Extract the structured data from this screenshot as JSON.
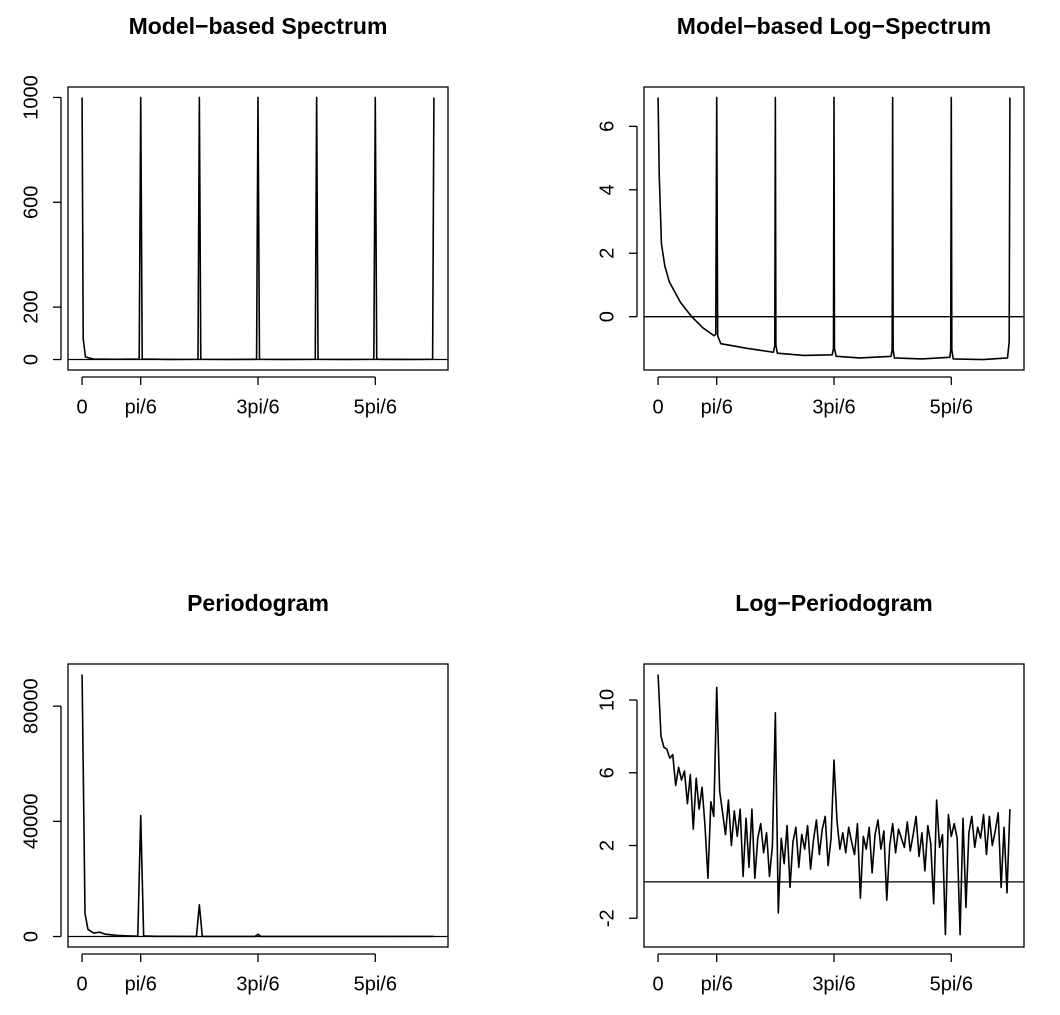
{
  "chart_data": [
    {
      "type": "line",
      "title": "Model−based Spectrum",
      "color": "#000000",
      "hline": 0,
      "x": [
        0,
        0.01,
        0.03,
        0.1,
        0.3,
        0.51,
        0.5236,
        0.537,
        0.8,
        1.035,
        1.0472,
        1.06,
        1.3,
        1.558,
        1.5708,
        1.584,
        1.8,
        2.082,
        2.0944,
        2.107,
        2.35,
        2.605,
        2.618,
        2.631,
        2.9,
        3.13,
        3.1416
      ],
      "values": [
        1000,
        80,
        10,
        2,
        1,
        2,
        1000,
        2,
        0.5,
        1,
        1000,
        1,
        0.4,
        1,
        1000,
        1,
        0.3,
        1,
        1000,
        1,
        0.3,
        1,
        1000,
        1,
        0.3,
        1,
        1000
      ],
      "xlim": [
        -0.1257,
        3.2673
      ],
      "ylim": [
        -40,
        1040
      ],
      "xticks": [
        0,
        {
          "value": 0.5236,
          "label": "pi/6"
        },
        {
          "value": 1.5708,
          "label": "3pi/6"
        },
        {
          "value": 2.618,
          "label": "5pi/6"
        }
      ],
      "yticks": [
        0,
        200,
        600,
        1000
      ]
    },
    {
      "type": "line",
      "title": "Model−based Log−Spectrum",
      "color": "#000000",
      "hline": 0,
      "x": [
        0,
        0.01,
        0.03,
        0.06,
        0.1,
        0.2,
        0.3,
        0.4,
        0.5,
        0.515,
        0.5236,
        0.532,
        0.56,
        0.8,
        1.03,
        1.042,
        1.0472,
        1.052,
        1.065,
        1.3,
        1.555,
        1.566,
        1.5708,
        1.575,
        1.59,
        1.8,
        2.08,
        2.09,
        2.0944,
        2.099,
        2.11,
        2.35,
        2.605,
        2.613,
        2.618,
        2.623,
        2.635,
        2.9,
        3.12,
        3.135,
        3.1416
      ],
      "values": [
        6.91,
        4.5,
        2.3,
        1.6,
        1.1,
        0.45,
        0,
        -0.35,
        -0.6,
        -0.55,
        6.91,
        -0.6,
        -0.85,
        -1.0,
        -1.12,
        -0.9,
        6.91,
        -0.9,
        -1.15,
        -1.22,
        -1.2,
        -1.0,
        6.91,
        -1.0,
        -1.25,
        -1.3,
        -1.25,
        -1.05,
        6.91,
        -1.05,
        -1.3,
        -1.33,
        -1.28,
        -1.05,
        6.91,
        -1.05,
        -1.33,
        -1.35,
        -1.3,
        -0.8,
        6.91
      ],
      "xlim": [
        -0.1257,
        3.2673
      ],
      "ylim": [
        -1.68,
        7.24
      ],
      "xticks": [
        0,
        {
          "value": 0.5236,
          "label": "pi/6"
        },
        {
          "value": 1.5708,
          "label": "3pi/6"
        },
        {
          "value": 2.618,
          "label": "5pi/6"
        }
      ],
      "yticks": [
        0,
        2,
        4,
        6
      ]
    },
    {
      "type": "line",
      "title": "Periodogram",
      "color": "#000000",
      "hline": 0,
      "x": [
        0,
        0.0262,
        0.0524,
        0.0785,
        0.1047,
        0.1571,
        0.2094,
        0.2618,
        0.3142,
        0.4189,
        0.4974,
        0.5236,
        0.5498,
        0.6545,
        0.8378,
        1.021,
        1.0472,
        1.0734,
        1.309,
        1.5446,
        1.5708,
        1.597,
        2.0944,
        2.618,
        3.1416
      ],
      "values": [
        91000,
        8000,
        2500,
        1800,
        1200,
        1500,
        800,
        600,
        400,
        200,
        100,
        42000,
        200,
        80,
        60,
        30,
        11000,
        40,
        30,
        20,
        800,
        20,
        15,
        20,
        50
      ],
      "xlim": [
        -0.1257,
        3.2673
      ],
      "ylim": [
        -3640,
        94640
      ],
      "xticks": [
        0,
        {
          "value": 0.5236,
          "label": "pi/6"
        },
        {
          "value": 1.5708,
          "label": "3pi/6"
        },
        {
          "value": 2.618,
          "label": "5pi/6"
        }
      ],
      "yticks": [
        0,
        40000,
        80000
      ]
    },
    {
      "type": "line",
      "title": "Log−Periodogram",
      "color": "#000000",
      "hline": 0,
      "x": [
        0,
        0.0262,
        0.0524,
        0.0785,
        0.1047,
        0.1309,
        0.1571,
        0.1833,
        0.2094,
        0.2356,
        0.2618,
        0.288,
        0.3142,
        0.3403,
        0.3665,
        0.3927,
        0.4189,
        0.4451,
        0.4712,
        0.4974,
        0.5236,
        0.5498,
        0.576,
        0.6021,
        0.6283,
        0.6545,
        0.6807,
        0.7069,
        0.733,
        0.7592,
        0.7854,
        0.8116,
        0.8378,
        0.8639,
        0.8901,
        0.9163,
        0.9425,
        0.9687,
        0.9948,
        1.021,
        1.0472,
        1.0734,
        1.0996,
        1.1257,
        1.1519,
        1.1781,
        1.2043,
        1.2305,
        1.2566,
        1.2828,
        1.309,
        1.3352,
        1.3614,
        1.3875,
        1.4137,
        1.4399,
        1.4661,
        1.4923,
        1.5184,
        1.5446,
        1.5708,
        1.597,
        1.6232,
        1.6493,
        1.6755,
        1.7017,
        1.7279,
        1.7541,
        1.7802,
        1.8064,
        1.8326,
        1.8588,
        1.885,
        1.9111,
        1.9373,
        1.9635,
        1.9897,
        2.0159,
        2.042,
        2.0682,
        2.0944,
        2.1206,
        2.1468,
        2.1729,
        2.1991,
        2.2253,
        2.2515,
        2.2777,
        2.3038,
        2.33,
        2.3562,
        2.3824,
        2.4086,
        2.4347,
        2.4609,
        2.4871,
        2.5133,
        2.5395,
        2.5656,
        2.5918,
        2.618,
        2.6442,
        2.6704,
        2.6965,
        2.7227,
        2.7489,
        2.7751,
        2.8013,
        2.8274,
        2.8536,
        2.8798,
        2.906,
        2.9322,
        2.9583,
        2.9845,
        3.0107,
        3.0369,
        3.0631,
        3.0892,
        3.1154,
        3.1416
      ],
      "values": [
        11.4,
        8.0,
        7.4,
        7.3,
        6.8,
        7.0,
        5.3,
        6.3,
        5.6,
        6.1,
        4.3,
        5.9,
        2.9,
        5.7,
        4.0,
        5.2,
        3.1,
        0.2,
        4.4,
        3.6,
        10.7,
        5.0,
        3.8,
        2.6,
        4.5,
        2.0,
        3.9,
        2.5,
        4.0,
        0.3,
        3.5,
        0.8,
        4.0,
        0.2,
        2.4,
        3.2,
        1.6,
        2.7,
        0.3,
        2.0,
        9.3,
        -1.7,
        2.4,
        1.0,
        3.1,
        -0.3,
        2.2,
        3.0,
        0.8,
        2.6,
        1.8,
        3.1,
        0.7,
        2.3,
        3.4,
        1.5,
        2.9,
        3.6,
        0.9,
        2.4,
        6.7,
        3.4,
        1.8,
        2.7,
        1.6,
        3.0,
        2.2,
        1.5,
        3.2,
        -0.9,
        2.5,
        1.8,
        3.0,
        0.5,
        2.6,
        3.4,
        1.8,
        2.8,
        -1.0,
        2.0,
        3.2,
        1.6,
        2.9,
        2.4,
        1.9,
        3.3,
        1.7,
        2.6,
        3.6,
        1.4,
        2.7,
        0.6,
        3.1,
        2.1,
        -1.2,
        4.5,
        1.9,
        2.6,
        -2.9,
        3.7,
        2.5,
        3.2,
        2.4,
        -2.9,
        3.5,
        -1.4,
        2.7,
        3.6,
        1.9,
        3.0,
        2.4,
        3.7,
        1.5,
        3.6,
        2.0,
        2.8,
        3.8,
        -0.3,
        3.0,
        -0.6,
        4.0
      ],
      "xlim": [
        -0.1257,
        3.2673
      ],
      "ylim": [
        -3.58,
        11.98
      ],
      "xticks": [
        0,
        {
          "value": 0.5236,
          "label": "pi/6"
        },
        {
          "value": 1.5708,
          "label": "3pi/6"
        },
        {
          "value": 2.618,
          "label": "5pi/6"
        }
      ],
      "yticks": [
        -2,
        2,
        6,
        10
      ]
    }
  ]
}
